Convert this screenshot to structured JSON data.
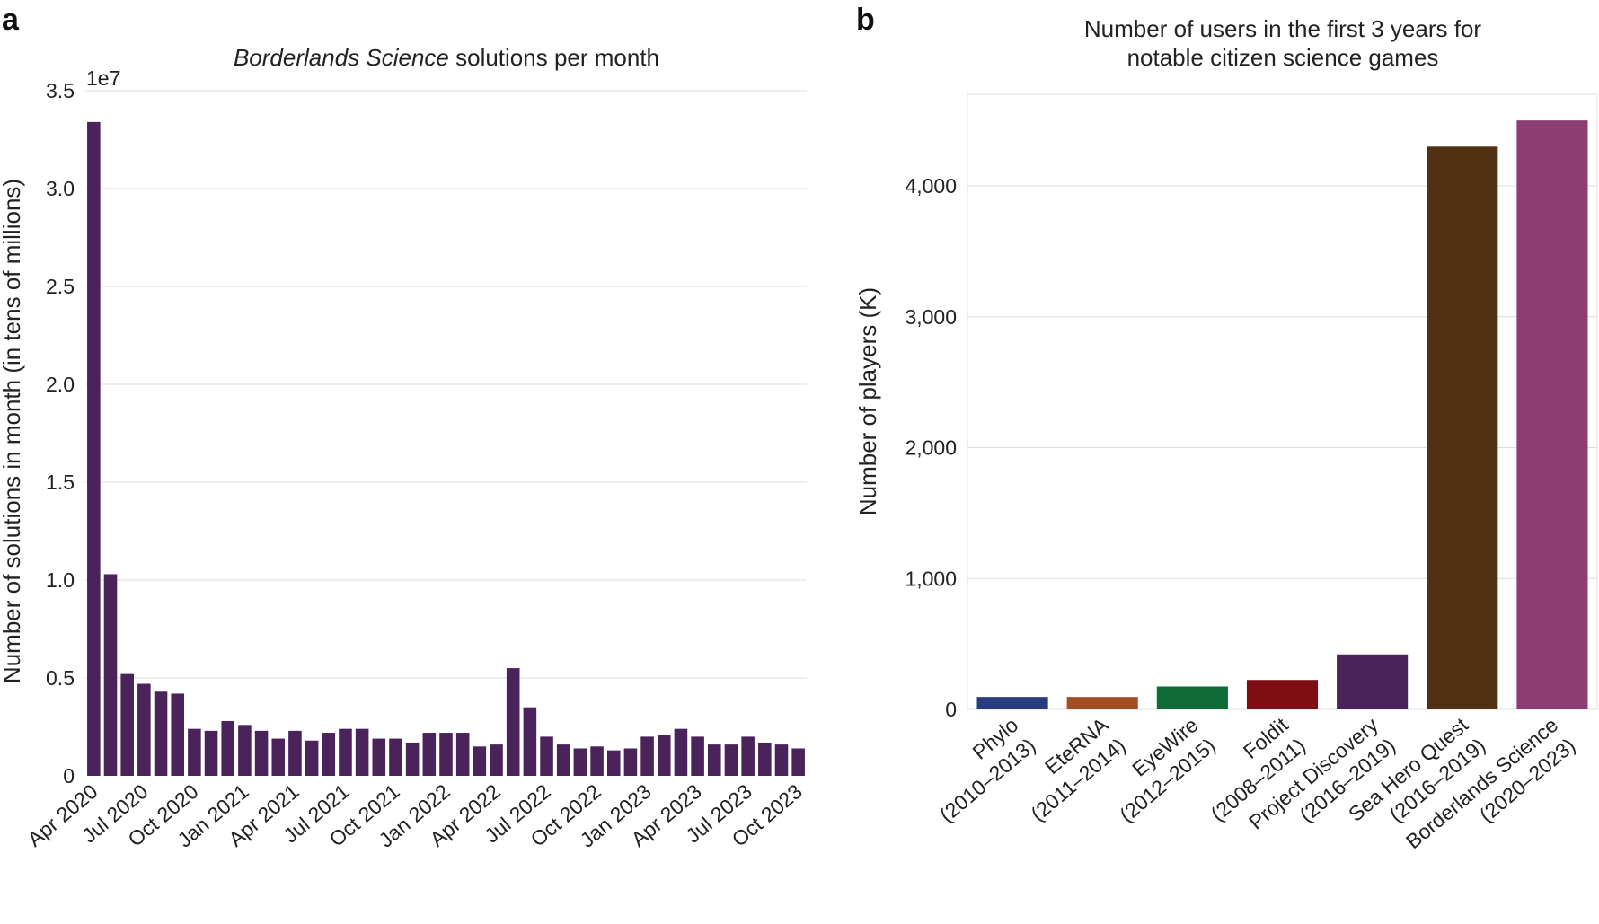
{
  "chart_data": [
    {
      "panel": "a",
      "type": "bar",
      "title_italic": "Borderlands Science",
      "title_rest": " solutions per month",
      "xlabel": "",
      "ylabel": "Number of solutions in month (in tens of millions)",
      "offset_label": "1e7",
      "ylim": [
        0,
        3.5
      ],
      "yticks": [
        "0",
        "0.5",
        "1.0",
        "1.5",
        "2.0",
        "2.5",
        "3.0",
        "3.5"
      ],
      "xtick_labels": [
        "Apr 2020",
        "Jul 2020",
        "Oct 2020",
        "Jan 2021",
        "Apr 2021",
        "Jul 2021",
        "Oct 2021",
        "Jan 2022",
        "Apr 2022",
        "Jul 2022",
        "Oct 2022",
        "Jan 2023",
        "Apr 2023",
        "Jul 2023",
        "Oct 2023"
      ],
      "bar_color": "#4a235a",
      "categories": [
        "Apr 2020",
        "May 2020",
        "Jun 2020",
        "Jul 2020",
        "Aug 2020",
        "Sep 2020",
        "Oct 2020",
        "Nov 2020",
        "Dec 2020",
        "Jan 2021",
        "Feb 2021",
        "Mar 2021",
        "Apr 2021",
        "May 2021",
        "Jun 2021",
        "Jul 2021",
        "Aug 2021",
        "Sep 2021",
        "Oct 2021",
        "Nov 2021",
        "Dec 2021",
        "Jan 2022",
        "Feb 2022",
        "Mar 2022",
        "Apr 2022",
        "May 2022",
        "Jun 2022",
        "Jul 2022",
        "Aug 2022",
        "Sep 2022",
        "Oct 2022",
        "Nov 2022",
        "Dec 2022",
        "Jan 2023",
        "Feb 2023",
        "Mar 2023",
        "Apr 2023",
        "May 2023",
        "Jun 2023",
        "Jul 2023",
        "Aug 2023",
        "Sep 2023",
        "Oct 2023"
      ],
      "values": [
        3.34,
        1.03,
        0.52,
        0.47,
        0.43,
        0.42,
        0.24,
        0.23,
        0.28,
        0.26,
        0.23,
        0.19,
        0.23,
        0.18,
        0.22,
        0.24,
        0.24,
        0.19,
        0.19,
        0.17,
        0.22,
        0.22,
        0.22,
        0.15,
        0.16,
        0.55,
        0.35,
        0.2,
        0.16,
        0.14,
        0.15,
        0.13,
        0.14,
        0.2,
        0.21,
        0.24,
        0.2,
        0.16,
        0.16,
        0.2,
        0.17,
        0.16,
        0.14
      ]
    },
    {
      "panel": "b",
      "type": "bar",
      "title": [
        "Number of users in the first 3 years for",
        "notable citizen science games"
      ],
      "xlabel": "",
      "ylabel": "Number of players (K)",
      "ylim": [
        0,
        4700
      ],
      "yticks": [
        0,
        1000,
        2000,
        3000,
        4000
      ],
      "ytick_labels": [
        "0",
        "1,000",
        "2,000",
        "3,000",
        "4,000"
      ],
      "categories": [
        [
          "Phylo",
          "(2010–2013)"
        ],
        [
          "EteRNA",
          "(2011–2014)"
        ],
        [
          "EyeWire",
          "(2012–2015)"
        ],
        [
          "Foldit",
          "(2008–2011)"
        ],
        [
          "Project Discovery",
          "(2016–2019)"
        ],
        [
          "Sea Hero Quest",
          "(2016–2019)"
        ],
        [
          "Borderlands Science",
          "(2020–2023)"
        ]
      ],
      "values": [
        95,
        95,
        175,
        225,
        420,
        4300,
        4500
      ],
      "colors": [
        "#283a80",
        "#a54d22",
        "#0f6b36",
        "#7e0d14",
        "#4a235a",
        "#523013",
        "#8b3d74"
      ]
    }
  ],
  "panel_labels": [
    "a",
    "b"
  ]
}
